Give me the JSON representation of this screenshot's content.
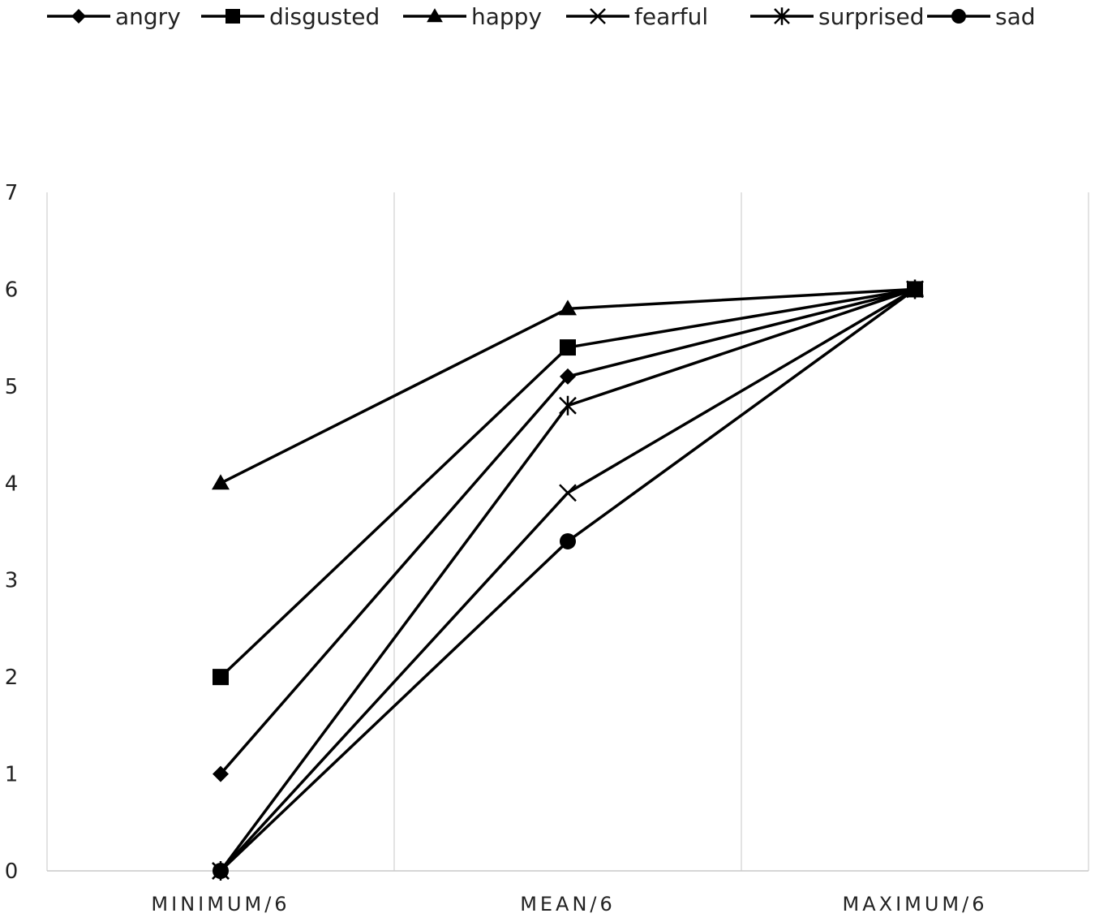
{
  "chart_data": {
    "type": "line",
    "categories": [
      "MINIMUM/6",
      "MEAN/6",
      "MAXIMUM/6"
    ],
    "series": [
      {
        "name": "angry",
        "marker": "diamond",
        "values": [
          1.0,
          5.1,
          6.0
        ]
      },
      {
        "name": "disgusted",
        "marker": "square",
        "values": [
          2.0,
          5.4,
          6.0
        ]
      },
      {
        "name": "happy",
        "marker": "triangle",
        "values": [
          4.0,
          5.8,
          6.0
        ]
      },
      {
        "name": "fearful",
        "marker": "x",
        "values": [
          0.0,
          3.9,
          6.0
        ]
      },
      {
        "name": "surprised",
        "marker": "star",
        "values": [
          0.0,
          4.8,
          6.0
        ]
      },
      {
        "name": "sad",
        "marker": "circle",
        "values": [
          0.0,
          3.4,
          6.0
        ]
      }
    ],
    "y_ticks": [
      "0",
      "1",
      "2",
      "3",
      "4",
      "5",
      "6",
      "7"
    ],
    "ylim": [
      0,
      7
    ],
    "grid": "vertical",
    "legend_position": "top",
    "colors": {
      "series": "#000000",
      "grid": "#d0d0d0",
      "axis": "#c8c8c8",
      "text": "#222222"
    }
  }
}
